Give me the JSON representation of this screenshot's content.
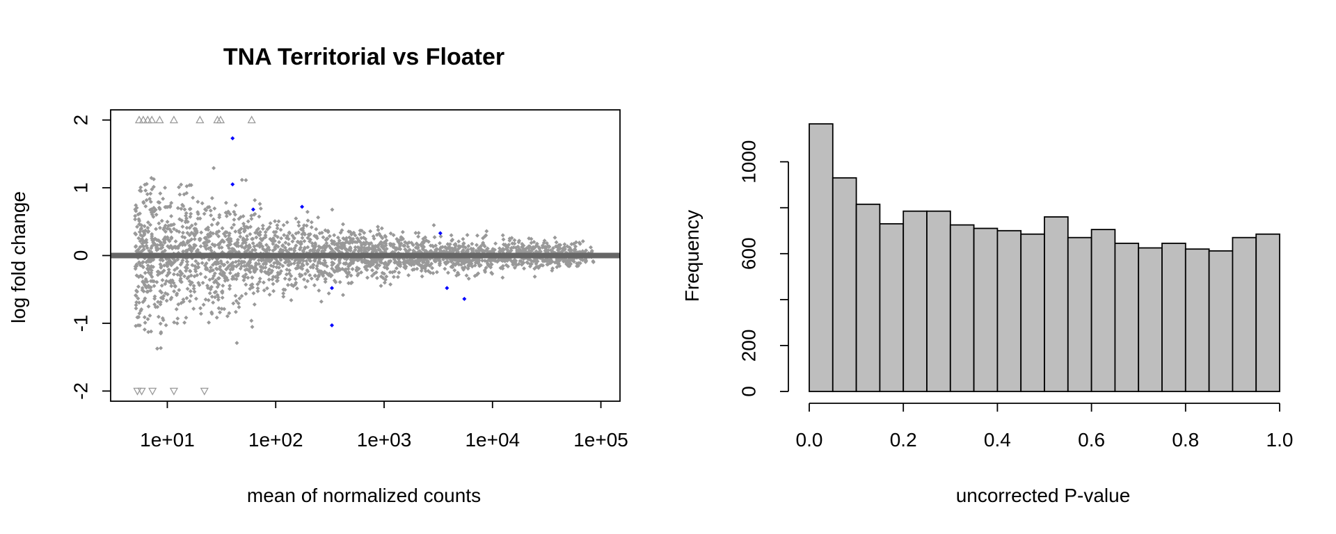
{
  "chart_data": [
    {
      "type": "scatter",
      "title": "TNA Territorial vs Floater",
      "xlabel": "mean of normalized counts",
      "ylabel": "log fold change",
      "xscale": "log10",
      "xlim": [
        3,
        150000
      ],
      "ylim": [
        -2.15,
        2.15
      ],
      "x_ticks": [
        10,
        100,
        1000,
        10000,
        100000
      ],
      "x_tick_labels": [
        "1e+01",
        "1e+02",
        "1e+03",
        "1e+04",
        "1e+05"
      ],
      "y_ticks": [
        -2,
        -1,
        0,
        1,
        2
      ],
      "y_tick_labels": [
        "-2",
        "-1",
        "0",
        "1",
        "2"
      ],
      "reference_line_y": 0,
      "colors": {
        "nonsignificant": "#999999",
        "significant": "#0000ff",
        "refline": "#666666"
      },
      "significant_points": [
        {
          "x": 40,
          "y": 1.73
        },
        {
          "x": 40,
          "y": 1.05
        },
        {
          "x": 62,
          "y": 0.68
        },
        {
          "x": 175,
          "y": 0.72
        },
        {
          "x": 3300,
          "y": 0.33
        },
        {
          "x": 330,
          "y": -1.03
        },
        {
          "x": 330,
          "y": -0.48
        },
        {
          "x": 3800,
          "y": -0.48
        },
        {
          "x": 5500,
          "y": -0.64
        }
      ],
      "clipped_points_top": [
        5.5,
        6.0,
        6.6,
        7.2,
        8.5,
        11.5,
        20,
        29,
        31,
        60
      ],
      "clipped_points_bottom": [
        5.3,
        5.8,
        7.3,
        11.5,
        22
      ]
    },
    {
      "type": "bar",
      "subtype": "histogram",
      "title": "",
      "xlabel": "uncorrected P-value",
      "ylabel": "Frequency",
      "bin_edges": [
        0,
        0.05,
        0.1,
        0.15,
        0.2,
        0.25,
        0.3,
        0.35,
        0.4,
        0.45,
        0.5,
        0.55,
        0.6,
        0.65,
        0.7,
        0.75,
        0.8,
        0.85,
        0.9,
        0.95,
        1.0
      ],
      "values": [
        1165,
        930,
        815,
        730,
        785,
        785,
        725,
        710,
        700,
        685,
        760,
        670,
        705,
        645,
        625,
        645,
        620,
        612,
        670,
        685
      ],
      "xlim": [
        0,
        1
      ],
      "ylim": [
        0,
        1220
      ],
      "x_ticks": [
        0,
        0.2,
        0.4,
        0.6,
        0.8,
        1.0
      ],
      "x_tick_labels": [
        "0.0",
        "0.2",
        "0.4",
        "0.6",
        "0.8",
        "1.0"
      ],
      "y_ticks": [
        0,
        200,
        400,
        600,
        800,
        1000
      ],
      "y_tick_labels": [
        "0",
        "200",
        "",
        "600",
        "",
        "1000"
      ],
      "colors": {
        "bar_fill": "#bebebe",
        "bar_stroke": "#000000"
      }
    }
  ]
}
